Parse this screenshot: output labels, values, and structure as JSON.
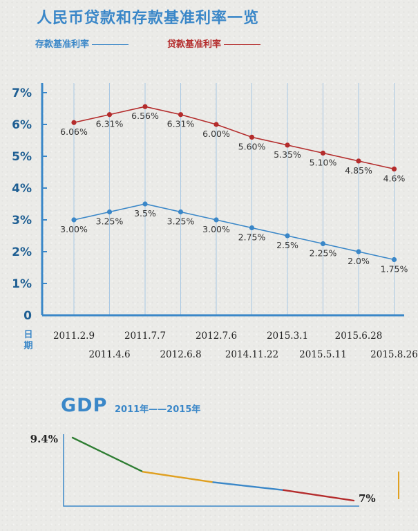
{
  "title": "人民币贷款和存款基准利率一览",
  "legend": {
    "deposit": "存款基准利率",
    "loan": "贷款基准利率"
  },
  "colors": {
    "deposit": "#3a87c8",
    "loan": "#b42c2c",
    "axis": "#3a87c8",
    "grid": "#a9c8e3",
    "gdp_segments": [
      "#2e7d32",
      "#e0a020",
      "#3a87c8",
      "#b42c2c"
    ]
  },
  "chart_data": [
    {
      "type": "line",
      "title": "人民币贷款和存款基准利率一览",
      "xlabel": "日期",
      "ylabel": "",
      "ylim": [
        0,
        7
      ],
      "yticks": [
        "0",
        "1%",
        "2%",
        "3%",
        "4%",
        "5%",
        "6%",
        "7%"
      ],
      "grid": true,
      "legend_position": "top-left",
      "categories": [
        "2011.2.9",
        "2011.4.6",
        "2011.7.7",
        "2012.6.8",
        "2012.7.6",
        "2014.11.22",
        "2015.3.1",
        "2015.5.11",
        "2015.6.28",
        "2015.8.26"
      ],
      "series": [
        {
          "name": "贷款基准利率",
          "values": [
            6.06,
            6.31,
            6.56,
            6.31,
            6.0,
            5.6,
            5.35,
            5.1,
            4.85,
            4.6
          ],
          "labels": [
            "6.06%",
            "6.31%",
            "6.56%",
            "6.31%",
            "6.00%",
            "5.60%",
            "5.35%",
            "5.10%",
            "4.85%",
            "4.6%"
          ]
        },
        {
          "name": "存款基准利率",
          "values": [
            3.0,
            3.25,
            3.5,
            3.25,
            3.0,
            2.75,
            2.5,
            2.25,
            2.0,
            1.75
          ],
          "labels": [
            "3.00%",
            "3.25%",
            "3.5%",
            "3.25%",
            "3.00%",
            "2.75%",
            "2.5%",
            "2.25%",
            "2.0%",
            "1.75%"
          ]
        }
      ]
    },
    {
      "type": "line",
      "title": "GDP",
      "subtitle": "2011年——2015年",
      "start_label": "9.4%",
      "end_label": "7%",
      "values": [
        9.4,
        8.1,
        7.7,
        7.4,
        7.0
      ]
    }
  ]
}
